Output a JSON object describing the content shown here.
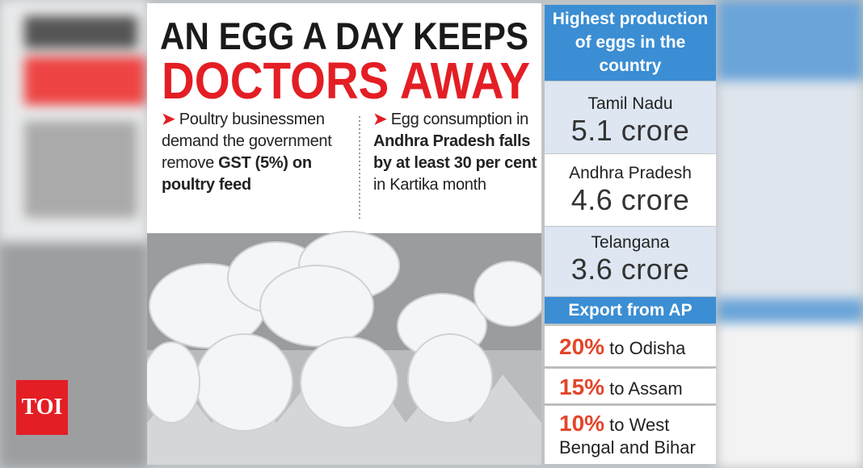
{
  "headline": {
    "line1": "AN EGG A DAY KEEPS",
    "line2": "DOCTORS AWAY"
  },
  "bullets": [
    {
      "parts": [
        {
          "text": "Poultry businessmen demand the government remove ",
          "bold": false
        },
        {
          "text": "GST (5%) on poultry feed",
          "bold": true
        }
      ]
    },
    {
      "parts": [
        {
          "text": "Egg consumption in ",
          "bold": false
        },
        {
          "text": "Andhra Pradesh falls by at least 30 per cent",
          "bold": true
        },
        {
          "text": " in Kartika month",
          "bold": false
        }
      ]
    }
  ],
  "production": {
    "title": "Highest production of eggs in the country",
    "rows": [
      {
        "state": "Tamil Nadu",
        "amount": "5.1 crore"
      },
      {
        "state": "Andhra Pradesh",
        "amount": "4.6 crore"
      },
      {
        "state": "Telangana",
        "amount": "3.6 crore"
      }
    ]
  },
  "export": {
    "title": "Export from AP",
    "rows": [
      {
        "share": "20%",
        "destination": "to Odisha"
      },
      {
        "share": "15%",
        "destination": "to Assam"
      },
      {
        "share": "10%",
        "destination": "to West Bengal and Bihar"
      }
    ]
  },
  "logo": "TOI"
}
